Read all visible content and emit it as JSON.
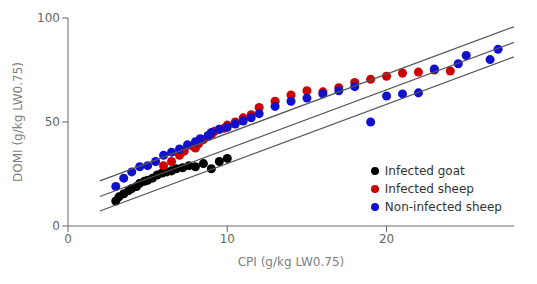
{
  "chart_data": {
    "type": "scatter",
    "xlabel": "CPI (g/kg LW0.75)",
    "ylabel": "DOMI (g/kg LW0.75)",
    "xlim": [
      0,
      28
    ],
    "ylim": [
      0,
      100
    ],
    "xticks": [
      0,
      10,
      20
    ],
    "yticks": [
      0,
      50,
      100
    ],
    "grid": false,
    "legend": "right",
    "series": [
      {
        "name": "Infected goat",
        "color": "#000000",
        "values": [
          [
            3.0,
            12.0
          ],
          [
            3.2,
            14.0
          ],
          [
            3.5,
            15.5
          ],
          [
            3.8,
            17.0
          ],
          [
            4.0,
            18.0
          ],
          [
            4.3,
            19.0
          ],
          [
            4.5,
            20.5
          ],
          [
            4.8,
            21.5
          ],
          [
            5.0,
            22.0
          ],
          [
            5.3,
            23.0
          ],
          [
            5.6,
            24.5
          ],
          [
            5.9,
            25.5
          ],
          [
            6.2,
            26.0
          ],
          [
            6.5,
            26.5
          ],
          [
            6.8,
            27.5
          ],
          [
            7.2,
            28.0
          ],
          [
            7.6,
            29.0
          ],
          [
            8.0,
            28.5
          ],
          [
            8.5,
            30.0
          ],
          [
            9.0,
            27.5
          ],
          [
            9.5,
            31.0
          ],
          [
            10.0,
            32.5
          ]
        ]
      },
      {
        "name": "Infected sheep",
        "color": "#cc0000",
        "values": [
          [
            6.0,
            29.0
          ],
          [
            6.5,
            31.0
          ],
          [
            7.0,
            34.0
          ],
          [
            7.3,
            36.0
          ],
          [
            7.8,
            38.5
          ],
          [
            8.0,
            37.5
          ],
          [
            8.2,
            39.5
          ],
          [
            8.5,
            41.5
          ],
          [
            8.8,
            43.0
          ],
          [
            9.0,
            44.0
          ],
          [
            9.2,
            45.5
          ],
          [
            9.5,
            46.5
          ],
          [
            9.8,
            47.0
          ],
          [
            10.0,
            48.5
          ],
          [
            10.5,
            50.0
          ],
          [
            11.0,
            52.0
          ],
          [
            11.5,
            53.5
          ],
          [
            12.0,
            57.0
          ],
          [
            13.0,
            60.0
          ],
          [
            14.0,
            63.0
          ],
          [
            15.0,
            65.0
          ],
          [
            16.0,
            64.5
          ],
          [
            17.0,
            66.5
          ],
          [
            18.0,
            69.0
          ],
          [
            19.0,
            70.5
          ],
          [
            20.0,
            72.0
          ],
          [
            21.0,
            73.5
          ],
          [
            22.0,
            74.0
          ],
          [
            23.0,
            75.0
          ],
          [
            24.0,
            74.5
          ]
        ]
      },
      {
        "name": "Non-infected sheep",
        "color": "#1111cc",
        "values": [
          [
            3.0,
            19.0
          ],
          [
            3.5,
            23.0
          ],
          [
            4.0,
            26.0
          ],
          [
            4.5,
            28.5
          ],
          [
            5.0,
            29.0
          ],
          [
            5.5,
            31.0
          ],
          [
            6.0,
            34.0
          ],
          [
            6.5,
            35.5
          ],
          [
            7.0,
            37.0
          ],
          [
            7.5,
            39.0
          ],
          [
            8.0,
            40.5
          ],
          [
            8.3,
            42.0
          ],
          [
            8.8,
            43.5
          ],
          [
            9.0,
            45.0
          ],
          [
            9.5,
            46.5
          ],
          [
            10.0,
            47.5
          ],
          [
            10.5,
            49.0
          ],
          [
            11.0,
            50.5
          ],
          [
            11.5,
            52.0
          ],
          [
            12.0,
            54.0
          ],
          [
            13.0,
            57.5
          ],
          [
            14.0,
            60.0
          ],
          [
            15.0,
            61.5
          ],
          [
            16.0,
            63.5
          ],
          [
            17.0,
            65.0
          ],
          [
            18.0,
            67.0
          ],
          [
            19.0,
            50.0
          ],
          [
            20.0,
            62.5
          ],
          [
            21.0,
            63.5
          ],
          [
            22.0,
            64.0
          ],
          [
            23.0,
            75.5
          ],
          [
            24.5,
            78.0
          ],
          [
            25.0,
            82.0
          ],
          [
            26.5,
            80.0
          ],
          [
            27.0,
            85.0
          ]
        ]
      },
      {
        "type": "line",
        "color": "#555555",
        "values": [
          [
            2,
            21.7
          ],
          [
            28,
            95.8
          ]
        ]
      },
      {
        "type": "line",
        "color": "#555555",
        "values": [
          [
            2,
            14.2
          ],
          [
            28,
            88.3
          ]
        ]
      },
      {
        "type": "line",
        "color": "#555555",
        "values": [
          [
            2,
            7.2
          ],
          [
            28,
            81.3
          ]
        ]
      }
    ]
  }
}
